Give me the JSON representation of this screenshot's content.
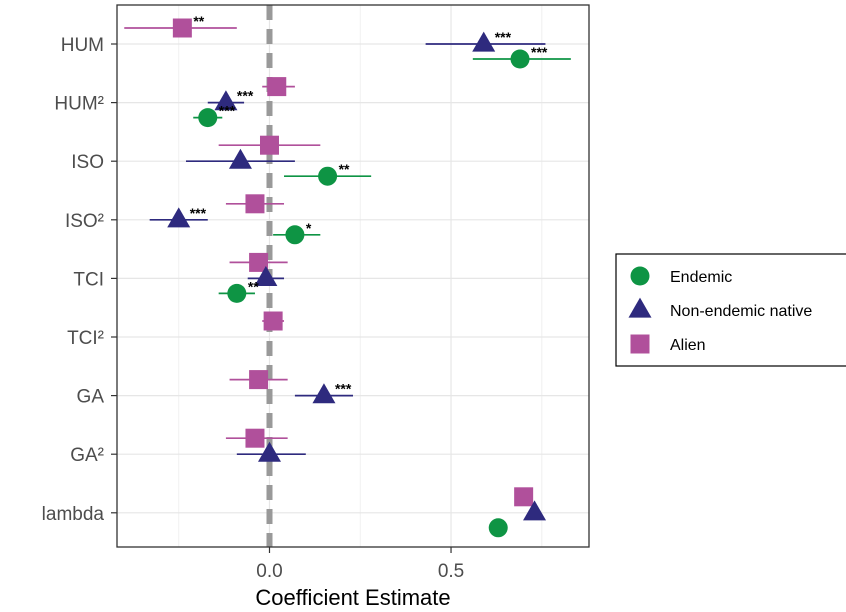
{
  "chart_data": {
    "type": "scatter",
    "subtype": "coefficient-forest-plot",
    "xlabel": "Coefficient Estimate",
    "ylabel": "",
    "title": "",
    "xlim": [
      -0.42,
      0.88
    ],
    "x_ticks": [
      0.0,
      0.5
    ],
    "x_tick_labels": [
      "0.0",
      "0.5"
    ],
    "grid": true,
    "reference_line": 0,
    "legend_position": "right",
    "categories": [
      "HUM",
      "HUM²",
      "ISO",
      "ISO²",
      "TCI",
      "TCI²",
      "GA",
      "GA²",
      "lambda"
    ],
    "series": [
      {
        "name": "Alien",
        "color": "#b0509b",
        "marker": "square",
        "points": [
          {
            "category": "HUM",
            "estimate": -0.24,
            "lower": -0.4,
            "upper": -0.09,
            "sig": "**"
          },
          {
            "category": "HUM²",
            "estimate": 0.02,
            "lower": -0.02,
            "upper": 0.07,
            "sig": ""
          },
          {
            "category": "ISO",
            "estimate": 0.0,
            "lower": -0.14,
            "upper": 0.14,
            "sig": ""
          },
          {
            "category": "ISO²",
            "estimate": -0.04,
            "lower": -0.12,
            "upper": 0.04,
            "sig": ""
          },
          {
            "category": "TCI",
            "estimate": -0.03,
            "lower": -0.11,
            "upper": 0.05,
            "sig": ""
          },
          {
            "category": "TCI²",
            "estimate": 0.01,
            "lower": -0.02,
            "upper": 0.04,
            "sig": ""
          },
          {
            "category": "GA",
            "estimate": -0.03,
            "lower": -0.11,
            "upper": 0.05,
            "sig": ""
          },
          {
            "category": "GA²",
            "estimate": -0.04,
            "lower": -0.12,
            "upper": 0.05,
            "sig": ""
          },
          {
            "category": "lambda",
            "estimate": 0.7,
            "lower": 0.7,
            "upper": 0.7,
            "sig": ""
          }
        ]
      },
      {
        "name": "Non-endemic native",
        "color": "#2e2a7e",
        "marker": "triangle",
        "points": [
          {
            "category": "HUM",
            "estimate": 0.59,
            "lower": 0.43,
            "upper": 0.76,
            "sig": "***"
          },
          {
            "category": "HUM²",
            "estimate": -0.12,
            "lower": -0.17,
            "upper": -0.07,
            "sig": "***"
          },
          {
            "category": "ISO",
            "estimate": -0.08,
            "lower": -0.23,
            "upper": 0.07,
            "sig": ""
          },
          {
            "category": "ISO²",
            "estimate": -0.25,
            "lower": -0.33,
            "upper": -0.17,
            "sig": "***"
          },
          {
            "category": "TCI",
            "estimate": -0.01,
            "lower": -0.06,
            "upper": 0.04,
            "sig": ""
          },
          {
            "category": "GA",
            "estimate": 0.15,
            "lower": 0.07,
            "upper": 0.23,
            "sig": "***"
          },
          {
            "category": "GA²",
            "estimate": 0.0,
            "lower": -0.09,
            "upper": 0.1,
            "sig": ""
          },
          {
            "category": "lambda",
            "estimate": 0.73,
            "lower": 0.73,
            "upper": 0.73,
            "sig": ""
          }
        ]
      },
      {
        "name": "Endemic",
        "color": "#0e9444",
        "marker": "circle",
        "points": [
          {
            "category": "HUM",
            "estimate": 0.69,
            "lower": 0.56,
            "upper": 0.83,
            "sig": "***"
          },
          {
            "category": "HUM²",
            "estimate": -0.17,
            "lower": -0.21,
            "upper": -0.13,
            "sig": "***"
          },
          {
            "category": "ISO",
            "estimate": 0.16,
            "lower": 0.04,
            "upper": 0.28,
            "sig": "**"
          },
          {
            "category": "ISO²",
            "estimate": 0.07,
            "lower": 0.01,
            "upper": 0.14,
            "sig": "*"
          },
          {
            "category": "TCI",
            "estimate": -0.09,
            "lower": -0.14,
            "upper": -0.04,
            "sig": "**"
          },
          {
            "category": "lambda",
            "estimate": 0.63,
            "lower": 0.63,
            "upper": 0.63,
            "sig": ""
          }
        ]
      }
    ],
    "legend_order": [
      "Endemic",
      "Non-endemic native",
      "Alien"
    ]
  }
}
